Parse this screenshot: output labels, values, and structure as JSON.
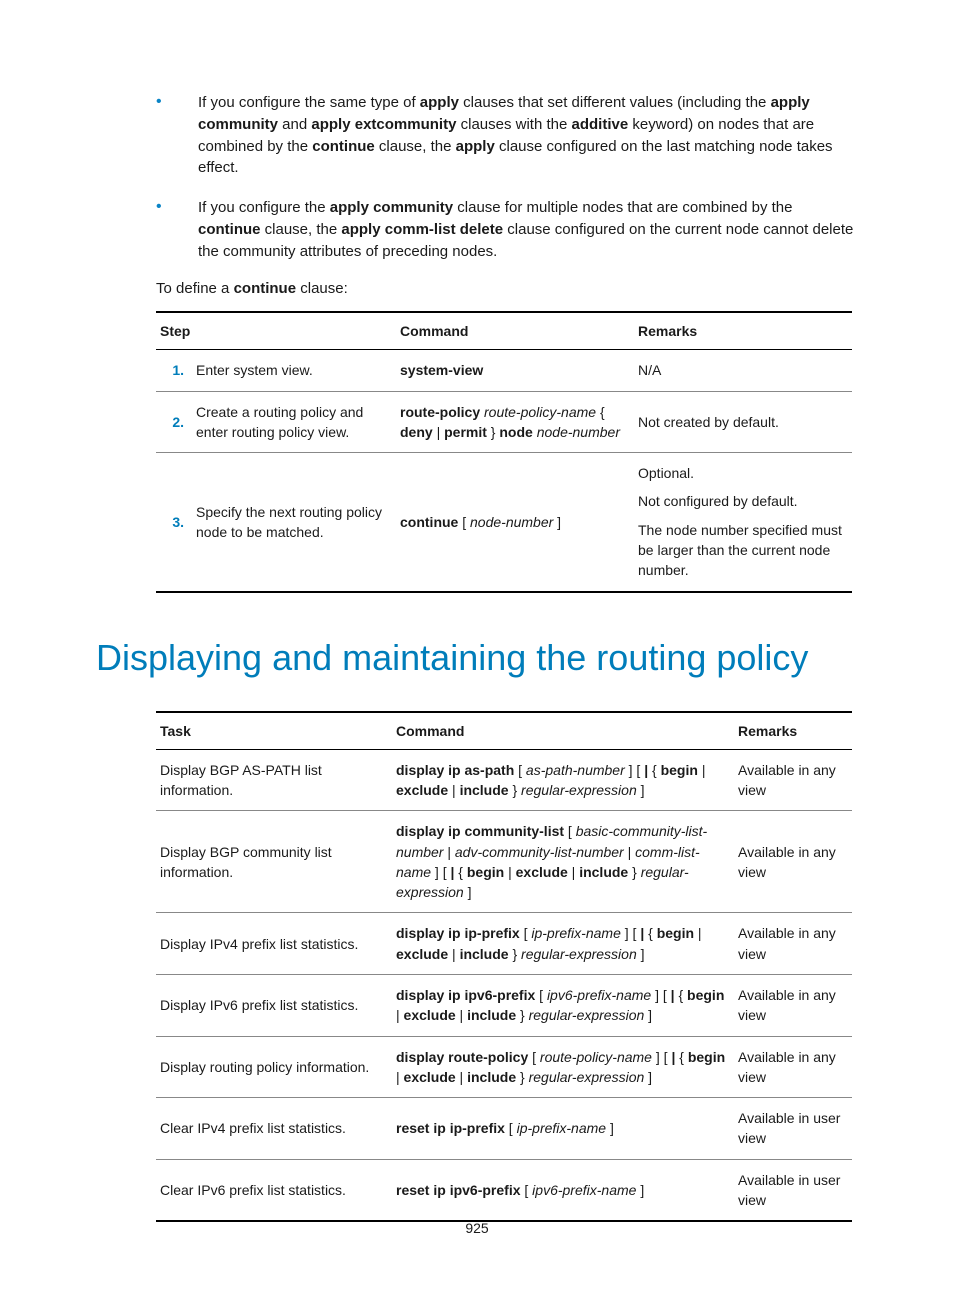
{
  "bullets": [
    {
      "parts": [
        {
          "t": "If you configure the same type of "
        },
        {
          "t": "apply",
          "b": true
        },
        {
          "t": " clauses that set different values (including the "
        },
        {
          "t": "apply community",
          "b": true
        },
        {
          "t": " and "
        },
        {
          "t": "apply extcommunity",
          "b": true
        },
        {
          "t": " clauses with the "
        },
        {
          "t": "additive",
          "b": true
        },
        {
          "t": " keyword) on nodes that are combined by the "
        },
        {
          "t": "continue",
          "b": true
        },
        {
          "t": " clause, the "
        },
        {
          "t": "apply",
          "b": true
        },
        {
          "t": " clause configured on the last matching node takes effect."
        }
      ]
    },
    {
      "parts": [
        {
          "t": "If you configure the "
        },
        {
          "t": "apply community",
          "b": true
        },
        {
          "t": " clause for multiple nodes that are combined by the "
        },
        {
          "t": "continue",
          "b": true
        },
        {
          "t": " clause, the "
        },
        {
          "t": "apply comm-list delete",
          "b": true
        },
        {
          "t": " clause configured on the current node cannot delete the community attributes of preceding nodes."
        }
      ]
    }
  ],
  "intro": {
    "parts": [
      {
        "t": "To define a "
      },
      {
        "t": "continue",
        "b": true
      },
      {
        "t": " clause:"
      }
    ]
  },
  "table1": {
    "headers": [
      "Step",
      "Command",
      "Remarks"
    ],
    "rows": [
      {
        "num": "1.",
        "desc": "Enter system view.",
        "cmd": [
          {
            "t": "system-view",
            "b": true
          }
        ],
        "remarks": [
          "N/A"
        ]
      },
      {
        "num": "2.",
        "desc": "Create a routing policy and enter routing policy view.",
        "cmd": [
          {
            "t": "route-policy",
            "b": true
          },
          {
            "t": " "
          },
          {
            "t": "route-policy-name",
            "i": true
          },
          {
            "t": " "
          },
          {
            "t": "{ "
          },
          {
            "t": "deny",
            "b": true
          },
          {
            "t": " | "
          },
          {
            "t": "permit",
            "b": true
          },
          {
            "t": " } "
          },
          {
            "t": "node",
            "b": true
          },
          {
            "t": " "
          },
          {
            "t": "node-number",
            "i": true
          }
        ],
        "remarks": [
          "Not created by default."
        ]
      },
      {
        "num": "3.",
        "desc": "Specify the next routing policy node to be matched.",
        "cmd": [
          {
            "t": "continue",
            "b": true
          },
          {
            "t": " [ "
          },
          {
            "t": "node-number",
            "i": true
          },
          {
            "t": " ]"
          }
        ],
        "remarks": [
          "Optional.",
          "Not configured by default.",
          "The node number specified must be larger than the current node number."
        ]
      }
    ]
  },
  "heading": "Displaying and maintaining the routing policy",
  "table2": {
    "headers": [
      "Task",
      "Command",
      "Remarks"
    ],
    "rows": [
      {
        "task": "Display BGP AS-PATH list information.",
        "cmd": [
          {
            "t": "display ip as-path",
            "b": true
          },
          {
            "t": " [ "
          },
          {
            "t": "as-path-number",
            "i": true
          },
          {
            "t": " ] [ "
          },
          {
            "t": "|",
            "b": true
          },
          {
            "t": " { "
          },
          {
            "t": "begin",
            "b": true
          },
          {
            "t": " | "
          },
          {
            "t": "exclude",
            "b": true
          },
          {
            "t": " | "
          },
          {
            "t": "include",
            "b": true
          },
          {
            "t": " } "
          },
          {
            "t": "regular-expression",
            "i": true
          },
          {
            "t": " ]"
          }
        ],
        "remarks": "Available in any view"
      },
      {
        "task": "Display BGP community list information.",
        "cmd": [
          {
            "t": "display ip community-list",
            "b": true
          },
          {
            "t": " [ "
          },
          {
            "t": "basic-community-list-number",
            "i": true
          },
          {
            "t": " | "
          },
          {
            "t": "adv-community-list-number",
            "i": true
          },
          {
            "t": " | "
          },
          {
            "t": "comm-list-name",
            "i": true
          },
          {
            "t": " ] [ "
          },
          {
            "t": "|",
            "b": true
          },
          {
            "t": " { "
          },
          {
            "t": "begin",
            "b": true
          },
          {
            "t": " | "
          },
          {
            "t": "exclude",
            "b": true
          },
          {
            "t": " | "
          },
          {
            "t": "include",
            "b": true
          },
          {
            "t": " } "
          },
          {
            "t": "regular-expression",
            "i": true
          },
          {
            "t": " ]"
          }
        ],
        "remarks": "Available in any view"
      },
      {
        "task": "Display IPv4 prefix list statistics.",
        "cmd": [
          {
            "t": "display ip ip-prefix",
            "b": true
          },
          {
            "t": " [ "
          },
          {
            "t": "ip-prefix-name",
            "i": true
          },
          {
            "t": " ] [ "
          },
          {
            "t": "|",
            "b": true
          },
          {
            "t": " { "
          },
          {
            "t": "begin",
            "b": true
          },
          {
            "t": " | "
          },
          {
            "t": "exclude",
            "b": true
          },
          {
            "t": " | "
          },
          {
            "t": "include",
            "b": true
          },
          {
            "t": " } "
          },
          {
            "t": "regular-expression",
            "i": true
          },
          {
            "t": " ]"
          }
        ],
        "remarks": "Available in any view"
      },
      {
        "task": "Display IPv6 prefix list statistics.",
        "cmd": [
          {
            "t": "display ip ipv6-prefix",
            "b": true
          },
          {
            "t": " [ "
          },
          {
            "t": "ipv6-prefix-name",
            "i": true
          },
          {
            "t": " ] [ "
          },
          {
            "t": "|",
            "b": true
          },
          {
            "t": " { "
          },
          {
            "t": "begin",
            "b": true
          },
          {
            "t": " | "
          },
          {
            "t": "exclude",
            "b": true
          },
          {
            "t": " | "
          },
          {
            "t": "include",
            "b": true
          },
          {
            "t": " } "
          },
          {
            "t": "regular-expression",
            "i": true
          },
          {
            "t": " ]"
          }
        ],
        "remarks": "Available in any view"
      },
      {
        "task": "Display routing policy information.",
        "cmd": [
          {
            "t": "display route-policy",
            "b": true
          },
          {
            "t": " [ "
          },
          {
            "t": "route-policy-name",
            "i": true
          },
          {
            "t": " ] [ "
          },
          {
            "t": "|",
            "b": true
          },
          {
            "t": " { "
          },
          {
            "t": "begin",
            "b": true
          },
          {
            "t": " | "
          },
          {
            "t": "exclude",
            "b": true
          },
          {
            "t": " | "
          },
          {
            "t": "include",
            "b": true
          },
          {
            "t": " } "
          },
          {
            "t": "regular-expression",
            "i": true
          },
          {
            "t": " ]"
          }
        ],
        "remarks": "Available in any view"
      },
      {
        "task": "Clear IPv4 prefix list statistics.",
        "cmd": [
          {
            "t": "reset ip ip-prefix",
            "b": true
          },
          {
            "t": " [ "
          },
          {
            "t": "ip-prefix-name",
            "i": true
          },
          {
            "t": " ]"
          }
        ],
        "remarks": "Available in user view"
      },
      {
        "task": "Clear IPv6 prefix list statistics.",
        "cmd": [
          {
            "t": "reset ip ipv6-prefix",
            "b": true
          },
          {
            "t": " [ "
          },
          {
            "t": "ipv6-prefix-name",
            "i": true
          },
          {
            "t": " ]"
          }
        ],
        "remarks": "Available in user view"
      }
    ]
  },
  "pageNumber": "925"
}
